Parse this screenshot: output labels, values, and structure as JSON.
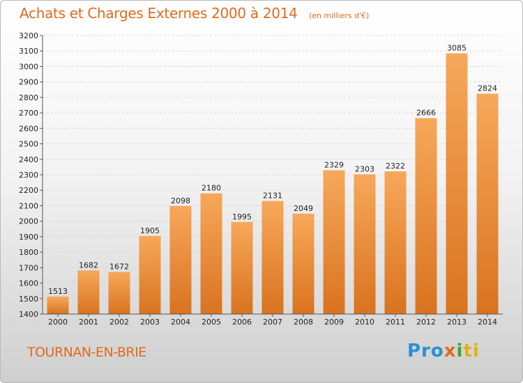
{
  "header": {
    "title": "Achats et Charges Externes 2000 à 2014",
    "subtitle": "(en milliers d'€)"
  },
  "footer": {
    "city": "TOURNAN-EN-BRIE",
    "logo": [
      "Pro",
      "x",
      "i",
      "ti"
    ]
  },
  "colors": {
    "accent": "#e06b1c",
    "bar_top": "#f7a85a",
    "bar_bottom": "#d9731f"
  },
  "chart_data": {
    "type": "bar",
    "title": "Achats et Charges Externes 2000 à 2014",
    "subtitle": "(en milliers d'€)",
    "categories": [
      "2000",
      "2001",
      "2002",
      "2003",
      "2004",
      "2005",
      "2006",
      "2007",
      "2008",
      "2009",
      "2010",
      "2011",
      "2012",
      "2013",
      "2014"
    ],
    "values": [
      1513,
      1682,
      1672,
      1905,
      2098,
      2180,
      1995,
      2131,
      2049,
      2329,
      2303,
      2322,
      2666,
      3085,
      2824
    ],
    "ylim": [
      1400,
      3200
    ],
    "yticks": [
      1400,
      1500,
      1600,
      1700,
      1800,
      1900,
      2000,
      2100,
      2200,
      2300,
      2400,
      2500,
      2600,
      2700,
      2800,
      2900,
      3000,
      3100,
      3200
    ],
    "grid": true,
    "legend": "none"
  }
}
